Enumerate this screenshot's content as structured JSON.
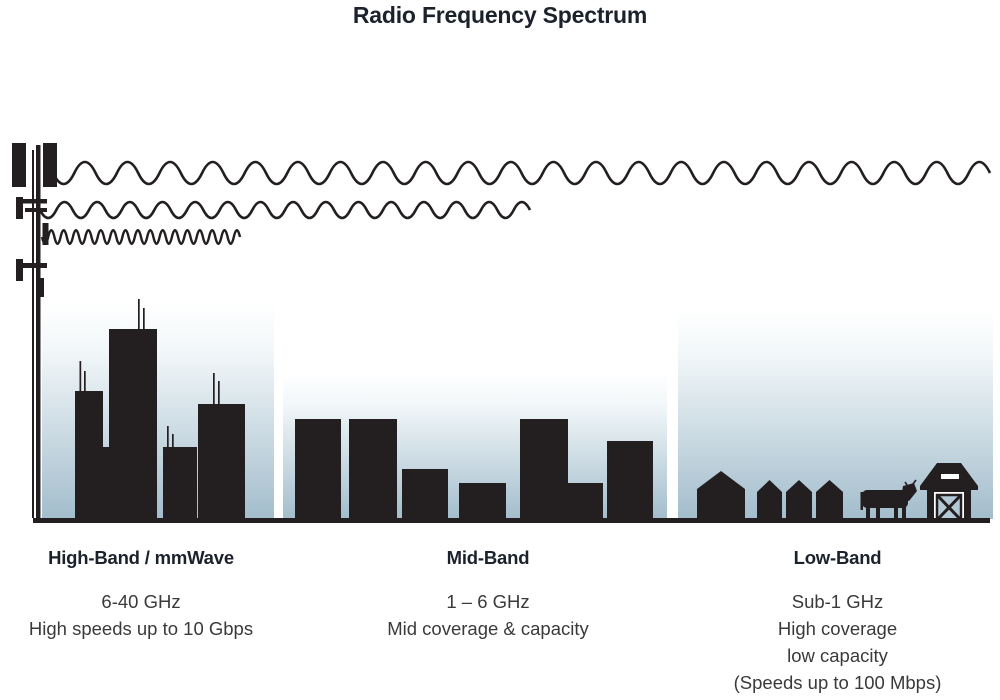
{
  "title": "Radio Frequency Spectrum",
  "bands": [
    {
      "id": "high-band",
      "name": "High-Band / mmWave",
      "lines": [
        "6-40 GHz",
        "High speeds up to 10 Gbps"
      ]
    },
    {
      "id": "mid-band",
      "name": "Mid-Band",
      "lines": [
        "1 – 6 GHz",
        "Mid coverage & capacity"
      ]
    },
    {
      "id": "low-band",
      "name": "Low-Band",
      "lines": [
        "Sub-1 GHz",
        "High coverage",
        "low capacity",
        "(Speeds up to 100 Mbps)"
      ]
    }
  ],
  "icons": {
    "tower": "cell-tower-icon",
    "long_wave": "long-wavelength-wave-icon",
    "medium_wave": "medium-wavelength-wave-icon",
    "short_wave": "short-wavelength-wave-icon",
    "high_scene": "city-skyscrapers-icon",
    "mid_scene": "midrise-buildings-icon",
    "low_scene": "rural-houses-icon",
    "cow": "cow-icon",
    "barn": "barn-icon"
  },
  "colors": {
    "ink": "#231f20",
    "heading_text": "#1c222c",
    "body_text": "#3a3a3a",
    "sky_top": "#ffffff",
    "sky_bottom": "#a3bdcc"
  }
}
